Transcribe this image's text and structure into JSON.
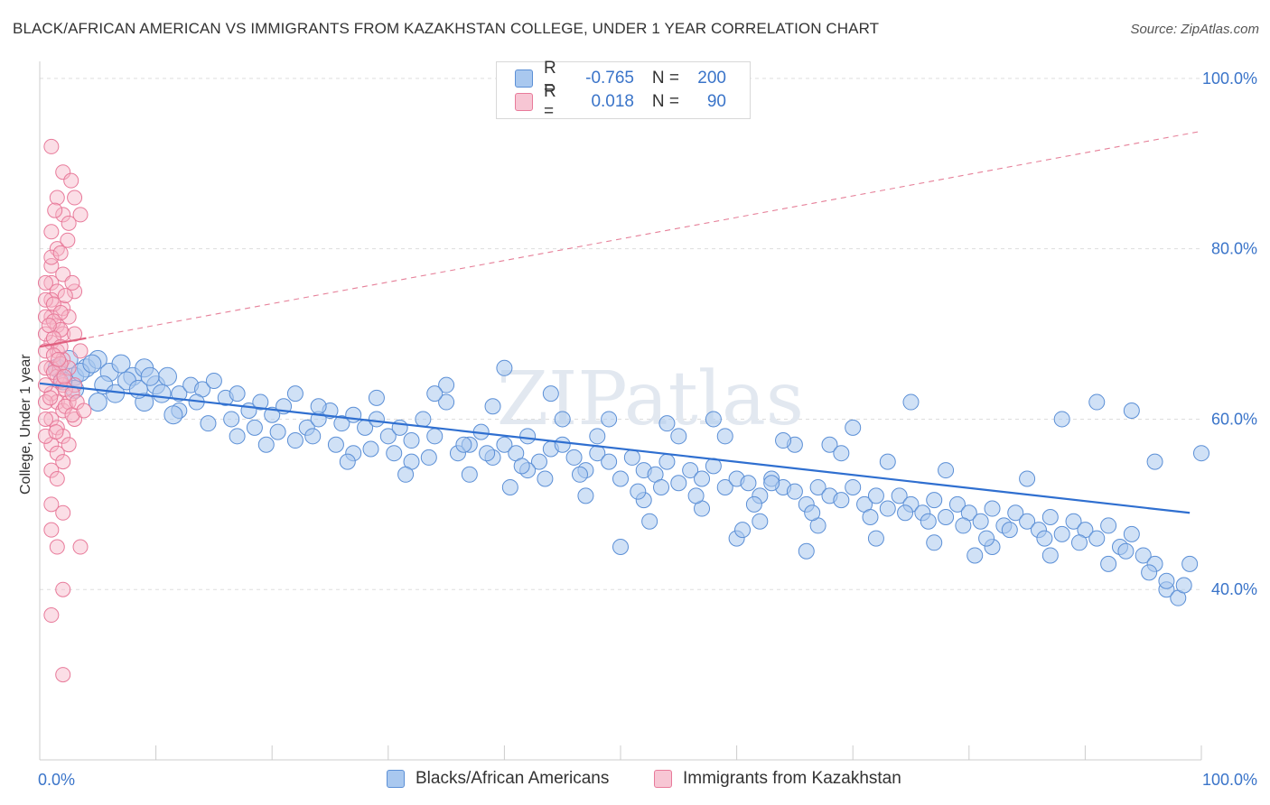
{
  "header": {
    "title": "BLACK/AFRICAN AMERICAN VS IMMIGRANTS FROM KAZAKHSTAN COLLEGE, UNDER 1 YEAR CORRELATION CHART",
    "source": "Source: ZipAtlas.com"
  },
  "watermark": "ZIPatlas",
  "legend": {
    "rows": [
      {
        "r_label": "R =",
        "r_value": "-0.765",
        "n_label": "N =",
        "n_value": "200"
      },
      {
        "r_label": "R =",
        "r_value": "0.018",
        "n_label": "N =",
        "n_value": "90"
      }
    ]
  },
  "colors": {
    "blue_fill": "#a9c8ef",
    "blue_stroke": "#5b8fd6",
    "blue_line": "#2f6fd0",
    "pink_fill": "#f7b6c8",
    "pink_stroke": "#e87a9a",
    "pink_line": "#e0607f",
    "grid": "#dddddd",
    "tick_text": "#3a74c9"
  },
  "chart_data": {
    "type": "scatter",
    "title": "BLACK/AFRICAN AMERICAN VS IMMIGRANTS FROM KAZAKHSTAN COLLEGE, UNDER 1 YEAR CORRELATION CHART",
    "xlabel": "",
    "ylabel": "College, Under 1 year",
    "xlim": [
      0,
      100
    ],
    "ylim": [
      20,
      102
    ],
    "x_tick_labels": [
      "0.0%",
      "100.0%"
    ],
    "y_ticks": [
      40,
      60,
      80,
      100
    ],
    "y_tick_labels": [
      "40.0%",
      "60.0%",
      "80.0%",
      "100.0%"
    ],
    "grid": true,
    "legend_position": "top-center",
    "series": [
      {
        "name": "Blacks/African Americans",
        "color": "#a9c8ef",
        "trend": {
          "x": [
            0,
            99
          ],
          "y": [
            64.2,
            49.0
          ]
        },
        "points": [
          [
            3,
            65
          ],
          [
            4,
            66
          ],
          [
            5,
            67
          ],
          [
            3,
            63.5
          ],
          [
            2,
            64.5
          ],
          [
            6,
            65.5
          ],
          [
            7,
            66.5
          ],
          [
            8,
            65
          ],
          [
            9,
            66
          ],
          [
            10,
            64
          ],
          [
            11,
            65
          ],
          [
            12,
            63
          ],
          [
            13,
            64
          ],
          [
            14,
            63.5
          ],
          [
            15,
            64.5
          ],
          [
            16,
            62.5
          ],
          [
            17,
            63
          ],
          [
            18,
            61
          ],
          [
            19,
            62
          ],
          [
            20,
            60.5
          ],
          [
            21,
            61.5
          ],
          [
            22,
            63
          ],
          [
            23,
            59
          ],
          [
            24,
            60
          ],
          [
            25,
            61
          ],
          [
            26,
            59.5
          ],
          [
            27,
            60.5
          ],
          [
            28,
            59
          ],
          [
            29,
            60
          ],
          [
            30,
            58
          ],
          [
            31,
            59
          ],
          [
            32,
            57.5
          ],
          [
            33,
            60
          ],
          [
            34,
            58
          ],
          [
            35,
            62
          ],
          [
            36,
            56
          ],
          [
            37,
            57
          ],
          [
            38,
            58.5
          ],
          [
            39,
            55.5
          ],
          [
            40,
            57
          ],
          [
            41,
            56
          ],
          [
            42,
            58
          ],
          [
            43,
            55
          ],
          [
            44,
            56.5
          ],
          [
            45,
            57
          ],
          [
            46,
            55.5
          ],
          [
            47,
            54
          ],
          [
            48,
            56
          ],
          [
            49,
            55
          ],
          [
            50,
            53
          ],
          [
            51,
            55.5
          ],
          [
            52,
            54
          ],
          [
            53,
            53.5
          ],
          [
            54,
            55
          ],
          [
            55,
            52.5
          ],
          [
            56,
            54
          ],
          [
            57,
            53
          ],
          [
            58,
            54.5
          ],
          [
            59,
            52
          ],
          [
            60,
            53
          ],
          [
            61,
            52.5
          ],
          [
            62,
            51
          ],
          [
            63,
            53
          ],
          [
            64,
            52
          ],
          [
            65,
            51.5
          ],
          [
            66,
            50
          ],
          [
            67,
            52
          ],
          [
            68,
            51
          ],
          [
            69,
            50.5
          ],
          [
            70,
            52
          ],
          [
            71,
            50
          ],
          [
            72,
            51
          ],
          [
            73,
            49.5
          ],
          [
            74,
            51
          ],
          [
            75,
            50
          ],
          [
            76,
            49
          ],
          [
            77,
            50.5
          ],
          [
            78,
            48.5
          ],
          [
            79,
            50
          ],
          [
            80,
            49
          ],
          [
            81,
            48
          ],
          [
            82,
            49.5
          ],
          [
            83,
            47.5
          ],
          [
            84,
            49
          ],
          [
            85,
            48
          ],
          [
            86,
            47
          ],
          [
            87,
            48.5
          ],
          [
            88,
            46.5
          ],
          [
            89,
            48
          ],
          [
            90,
            47
          ],
          [
            91,
            46
          ],
          [
            92,
            47.5
          ],
          [
            93,
            45
          ],
          [
            94,
            46.5
          ],
          [
            95,
            44
          ],
          [
            96,
            43
          ],
          [
            97,
            40
          ],
          [
            98,
            39
          ],
          [
            99,
            43
          ],
          [
            100,
            56
          ],
          [
            5,
            62
          ],
          [
            9,
            62
          ],
          [
            12,
            61
          ],
          [
            17,
            58
          ],
          [
            22,
            57.5
          ],
          [
            27,
            56
          ],
          [
            32,
            55
          ],
          [
            37,
            53.5
          ],
          [
            42,
            54
          ],
          [
            47,
            51
          ],
          [
            52,
            50.5
          ],
          [
            57,
            49.5
          ],
          [
            62,
            48
          ],
          [
            67,
            47.5
          ],
          [
            72,
            46
          ],
          [
            77,
            45.5
          ],
          [
            82,
            45
          ],
          [
            87,
            44
          ],
          [
            92,
            43
          ],
          [
            97,
            41
          ],
          [
            50,
            45
          ],
          [
            60,
            46
          ],
          [
            63,
            52.5
          ],
          [
            70,
            59
          ],
          [
            75,
            62
          ],
          [
            85,
            53
          ],
          [
            88,
            60
          ],
          [
            91,
            62
          ],
          [
            94,
            61
          ],
          [
            96,
            55
          ],
          [
            35,
            64
          ],
          [
            40,
            66
          ],
          [
            45,
            60
          ],
          [
            48,
            58
          ],
          [
            55,
            58
          ],
          [
            58,
            60
          ],
          [
            65,
            57
          ],
          [
            68,
            57
          ],
          [
            73,
            55
          ],
          [
            78,
            54
          ],
          [
            24,
            61.5
          ],
          [
            29,
            62.5
          ],
          [
            34,
            63
          ],
          [
            39,
            61.5
          ],
          [
            44,
            63
          ],
          [
            49,
            60
          ],
          [
            54,
            59.5
          ],
          [
            59,
            58
          ],
          [
            64,
            57.5
          ],
          [
            69,
            56
          ],
          [
            1.5,
            66
          ],
          [
            2.5,
            67
          ],
          [
            3.5,
            65.5
          ],
          [
            4.5,
            66.5
          ],
          [
            5.5,
            64
          ],
          [
            6.5,
            63
          ],
          [
            7.5,
            64.5
          ],
          [
            8.5,
            63.5
          ],
          [
            9.5,
            65
          ],
          [
            10.5,
            63
          ],
          [
            13.5,
            62
          ],
          [
            16.5,
            60
          ],
          [
            18.5,
            59
          ],
          [
            20.5,
            58.5
          ],
          [
            23.5,
            58
          ],
          [
            25.5,
            57
          ],
          [
            28.5,
            56.5
          ],
          [
            30.5,
            56
          ],
          [
            33.5,
            55.5
          ],
          [
            36.5,
            57
          ],
          [
            38.5,
            56
          ],
          [
            41.5,
            54.5
          ],
          [
            43.5,
            53
          ],
          [
            46.5,
            53.5
          ],
          [
            51.5,
            51.5
          ],
          [
            53.5,
            52
          ],
          [
            56.5,
            51
          ],
          [
            61.5,
            50
          ],
          [
            66.5,
            49
          ],
          [
            71.5,
            48.5
          ],
          [
            74.5,
            49
          ],
          [
            76.5,
            48
          ],
          [
            79.5,
            47.5
          ],
          [
            81.5,
            46
          ],
          [
            83.5,
            47
          ],
          [
            86.5,
            46
          ],
          [
            89.5,
            45.5
          ],
          [
            93.5,
            44.5
          ],
          [
            95.5,
            42
          ],
          [
            98.5,
            40.5
          ],
          [
            11.5,
            60.5
          ],
          [
            14.5,
            59.5
          ],
          [
            19.5,
            57
          ],
          [
            26.5,
            55
          ],
          [
            31.5,
            53.5
          ],
          [
            40.5,
            52
          ],
          [
            52.5,
            48
          ],
          [
            60.5,
            47
          ],
          [
            66,
            44.5
          ],
          [
            80.5,
            44
          ]
        ]
      },
      {
        "name": "Immigrants from Kazakhstan",
        "color": "#f7b6c8",
        "trend": {
          "x": [
            0,
            100
          ],
          "y": [
            68.5,
            93.8
          ]
        },
        "trend_solid_to_x": 4,
        "points": [
          [
            1,
            92
          ],
          [
            2,
            89
          ],
          [
            1.5,
            86
          ],
          [
            2,
            84
          ],
          [
            1,
            82
          ],
          [
            2.5,
            83
          ],
          [
            1.5,
            80
          ],
          [
            1,
            78
          ],
          [
            2,
            77
          ],
          [
            1,
            76
          ],
          [
            1.5,
            75
          ],
          [
            1,
            74
          ],
          [
            2,
            73
          ],
          [
            1,
            72
          ],
          [
            1.5,
            71
          ],
          [
            2,
            70
          ],
          [
            1,
            69
          ],
          [
            1.5,
            68
          ],
          [
            2,
            67
          ],
          [
            1,
            66
          ],
          [
            1.5,
            65
          ],
          [
            2,
            64
          ],
          [
            1,
            63
          ],
          [
            1.5,
            62
          ],
          [
            2,
            61
          ],
          [
            1,
            60
          ],
          [
            1.5,
            59
          ],
          [
            2,
            58
          ],
          [
            1,
            57
          ],
          [
            1.5,
            56
          ],
          [
            2,
            55
          ],
          [
            1,
            54
          ],
          [
            1.5,
            53
          ],
          [
            1,
            50
          ],
          [
            2,
            49
          ],
          [
            1,
            47
          ],
          [
            1.5,
            45
          ],
          [
            2,
            40
          ],
          [
            1,
            37
          ],
          [
            2,
            30
          ],
          [
            3,
            86
          ],
          [
            3.5,
            84
          ],
          [
            3,
            75
          ],
          [
            2.5,
            72
          ],
          [
            3,
            70
          ],
          [
            3.5,
            68
          ],
          [
            2.5,
            66
          ],
          [
            3,
            64
          ],
          [
            2.5,
            62
          ],
          [
            3,
            60
          ],
          [
            0.5,
            70
          ],
          [
            0.5,
            68
          ],
          [
            0.5,
            66
          ],
          [
            0.5,
            64
          ],
          [
            0.5,
            62
          ],
          [
            0.5,
            72
          ],
          [
            0.5,
            74
          ],
          [
            0.5,
            60
          ],
          [
            0.5,
            58
          ],
          [
            0.5,
            76
          ],
          [
            1.2,
            73.5
          ],
          [
            1.8,
            72.5
          ],
          [
            1.2,
            71.5
          ],
          [
            1.8,
            70.5
          ],
          [
            1.2,
            69.5
          ],
          [
            1.8,
            68.5
          ],
          [
            1.2,
            67.5
          ],
          [
            1.8,
            66.5
          ],
          [
            1.2,
            65.5
          ],
          [
            1.8,
            64.5
          ],
          [
            2.2,
            63.5
          ],
          [
            2.8,
            63
          ],
          [
            2.2,
            61.5
          ],
          [
            2.8,
            60.5
          ],
          [
            3.2,
            62
          ],
          [
            3.8,
            61
          ],
          [
            2.2,
            74.5
          ],
          [
            2.8,
            76
          ],
          [
            3.5,
            45
          ],
          [
            2.5,
            57
          ],
          [
            1,
            79
          ],
          [
            1.8,
            79.5
          ],
          [
            2.4,
            81
          ],
          [
            1.3,
            84.5
          ],
          [
            2.7,
            88
          ],
          [
            0.8,
            71
          ],
          [
            1.6,
            67
          ],
          [
            2.1,
            65
          ],
          [
            0.9,
            62.5
          ],
          [
            1.4,
            58.5
          ]
        ]
      }
    ]
  },
  "bottom_legend": [
    {
      "label": "Blacks/African Americans"
    },
    {
      "label": "Immigrants from Kazakhstan"
    }
  ]
}
